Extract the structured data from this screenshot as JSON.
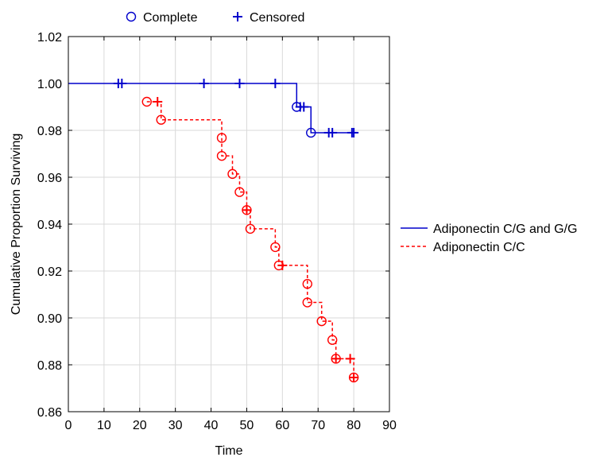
{
  "chart_data": {
    "type": "line",
    "title": "",
    "xlabel": "Time",
    "ylabel": "Cumulative Proportion Surviving",
    "xlim": [
      0,
      90
    ],
    "ylim": [
      0.86,
      1.02
    ],
    "xticks": [
      0,
      10,
      20,
      30,
      40,
      50,
      60,
      70,
      80,
      90
    ],
    "yticks": [
      0.86,
      0.88,
      0.9,
      0.92,
      0.94,
      0.96,
      0.98,
      1.0,
      1.02
    ],
    "ytick_decimals": 2,
    "grid": true,
    "marker_legend": {
      "position": "top",
      "complete_label": "Complete",
      "censored_label": "Censored",
      "color": "#0000cc"
    },
    "legend_position": "right",
    "series": [
      {
        "name": "Adiponectin C/G and G/G",
        "color": "#0000cc",
        "line_style": "solid",
        "x0": 0,
        "y0": 1.0,
        "steps": [
          {
            "x": 64,
            "y": 0.99
          },
          {
            "x": 68,
            "y": 0.979
          }
        ],
        "end_x": 80,
        "complete": [
          {
            "x": 64,
            "y": 0.99
          },
          {
            "x": 68,
            "y": 0.979
          }
        ],
        "censored": [
          {
            "x": 14,
            "y": 1.0
          },
          {
            "x": 15,
            "y": 1.0
          },
          {
            "x": 38,
            "y": 1.0
          },
          {
            "x": 48,
            "y": 1.0
          },
          {
            "x": 58,
            "y": 1.0
          },
          {
            "x": 65,
            "y": 0.99
          },
          {
            "x": 66,
            "y": 0.99
          },
          {
            "x": 73,
            "y": 0.979
          },
          {
            "x": 74,
            "y": 0.979
          },
          {
            "x": 79.5,
            "y": 0.979
          },
          {
            "x": 80,
            "y": 0.979
          }
        ]
      },
      {
        "name": "Adiponectin C/C",
        "color": "#ff0000",
        "line_style": "dashed",
        "x0": 22,
        "y0": 0.9922,
        "steps": [
          {
            "x": 26,
            "y": 0.9845
          },
          {
            "x": 43,
            "y": 0.9768
          },
          {
            "x": 43,
            "y": 0.9691
          },
          {
            "x": 46,
            "y": 0.9614
          },
          {
            "x": 48,
            "y": 0.9537
          },
          {
            "x": 50,
            "y": 0.946
          },
          {
            "x": 51,
            "y": 0.938
          },
          {
            "x": 58,
            "y": 0.9302
          },
          {
            "x": 59,
            "y": 0.9224
          },
          {
            "x": 67,
            "y": 0.9145
          },
          {
            "x": 67,
            "y": 0.9066
          },
          {
            "x": 71,
            "y": 0.8986
          },
          {
            "x": 74,
            "y": 0.8906
          },
          {
            "x": 75,
            "y": 0.8826
          },
          {
            "x": 80,
            "y": 0.8746
          }
        ],
        "end_x": 80,
        "complete": [
          {
            "x": 22,
            "y": 0.9922
          },
          {
            "x": 26,
            "y": 0.9845
          },
          {
            "x": 43,
            "y": 0.9768
          },
          {
            "x": 43,
            "y": 0.9691
          },
          {
            "x": 46,
            "y": 0.9614
          },
          {
            "x": 48,
            "y": 0.9537
          },
          {
            "x": 50,
            "y": 0.946
          },
          {
            "x": 51,
            "y": 0.938
          },
          {
            "x": 58,
            "y": 0.9302
          },
          {
            "x": 59,
            "y": 0.9224
          },
          {
            "x": 67,
            "y": 0.9145
          },
          {
            "x": 67,
            "y": 0.9066
          },
          {
            "x": 71,
            "y": 0.8986
          },
          {
            "x": 74,
            "y": 0.8906
          },
          {
            "x": 75,
            "y": 0.8826
          },
          {
            "x": 80,
            "y": 0.8746
          }
        ],
        "censored": [
          {
            "x": 25,
            "y": 0.9922
          },
          {
            "x": 50,
            "y": 0.946
          },
          {
            "x": 60,
            "y": 0.9224
          },
          {
            "x": 75,
            "y": 0.8826
          },
          {
            "x": 79,
            "y": 0.8826
          },
          {
            "x": 80,
            "y": 0.8746
          }
        ]
      }
    ]
  }
}
